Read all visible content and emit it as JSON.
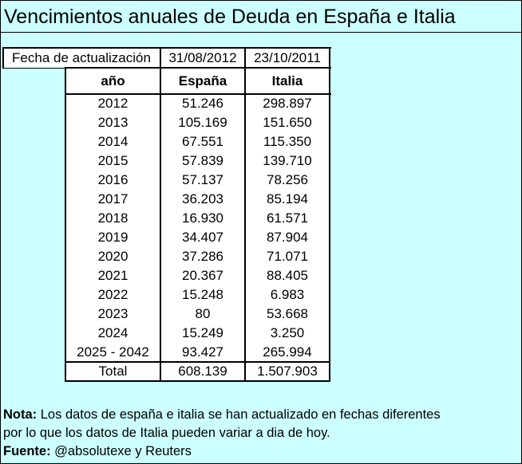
{
  "title": "Vencimientos anuales de Deuda en España e Italia",
  "update_row": {
    "label": "Fecha de actualización",
    "spain_date": "31/08/2012",
    "italy_date": "23/10/2011"
  },
  "table": {
    "headers": {
      "year": "año",
      "spain": "España",
      "italy": "Italia"
    },
    "rows": [
      {
        "year": "2012",
        "spain": "51.246",
        "italy": "298.897"
      },
      {
        "year": "2013",
        "spain": "105.169",
        "italy": "151.650"
      },
      {
        "year": "2014",
        "spain": "67.551",
        "italy": "115.350"
      },
      {
        "year": "2015",
        "spain": "57.839",
        "italy": "139.710"
      },
      {
        "year": "2016",
        "spain": "57.137",
        "italy": "78.256"
      },
      {
        "year": "2017",
        "spain": "36.203",
        "italy": "85.194"
      },
      {
        "year": "2018",
        "spain": "16.930",
        "italy": "61.571"
      },
      {
        "year": "2019",
        "spain": "34.407",
        "italy": "87.904"
      },
      {
        "year": "2020",
        "spain": "37.286",
        "italy": "71.071"
      },
      {
        "year": "2021",
        "spain": "20.367",
        "italy": "88.405"
      },
      {
        "year": "2022",
        "spain": "15.248",
        "italy": "6.983"
      },
      {
        "year": "2023",
        "spain": "80",
        "italy": "53.668"
      },
      {
        "year": "2024",
        "spain": "15.249",
        "italy": "3.250"
      },
      {
        "year": "2025 - 2042",
        "spain": "93.427",
        "italy": "265.994"
      }
    ],
    "total": {
      "label": "Total",
      "spain": "608.139",
      "italy": "1.507.903"
    }
  },
  "footer": {
    "nota_label": "Nota:",
    "nota_text": " Los datos de españa e italia se han actualizado en fechas diferentes",
    "nota_text_2": "por lo que los datos de Italia pueden variar a dia de hoy.",
    "fuente_label": "Fuente:",
    "fuente_text": " @absolutexe y Reuters"
  },
  "colors": {
    "background": "#ccffff",
    "table_background": "#ffffff",
    "text": "#000000"
  }
}
